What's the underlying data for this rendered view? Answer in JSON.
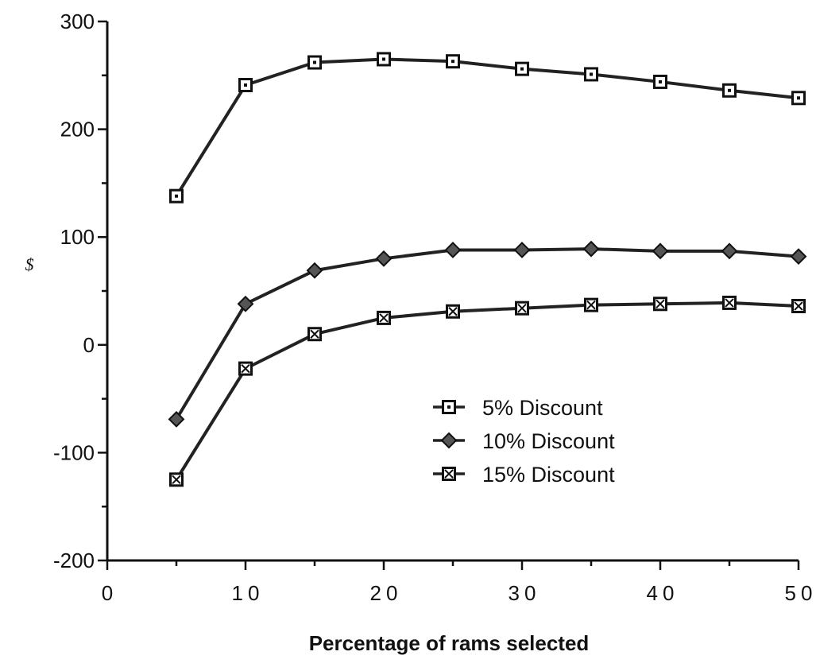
{
  "chart_data": {
    "type": "line",
    "title": "",
    "xlabel": "Percentage of rams selected",
    "ylabel": "$",
    "xlim": [
      0,
      50
    ],
    "ylim": [
      -200,
      300
    ],
    "x_ticks": [
      0,
      10,
      20,
      30,
      40,
      50
    ],
    "x_tick_labels": [
      "0",
      "10",
      "20",
      "30",
      "40",
      "50"
    ],
    "y_ticks": [
      -200,
      -100,
      0,
      100,
      200,
      300
    ],
    "y_tick_labels": [
      "-200",
      "-100",
      "0",
      "100",
      "200",
      "300"
    ],
    "grid": false,
    "legend_position": "lower-right",
    "x": [
      5,
      10,
      15,
      20,
      25,
      30,
      35,
      40,
      45,
      50
    ],
    "series": [
      {
        "name": "5% Discount",
        "marker": "square-dot",
        "values": [
          138,
          241,
          262,
          265,
          263,
          256,
          251,
          244,
          236,
          229
        ]
      },
      {
        "name": "10% Discount",
        "marker": "diamond",
        "values": [
          -69,
          38,
          69,
          80,
          88,
          88,
          89,
          87,
          87,
          82
        ]
      },
      {
        "name": "15% Discount",
        "marker": "square-x",
        "values": [
          -125,
          -22,
          10,
          25,
          31,
          34,
          37,
          38,
          39,
          36
        ]
      }
    ]
  }
}
